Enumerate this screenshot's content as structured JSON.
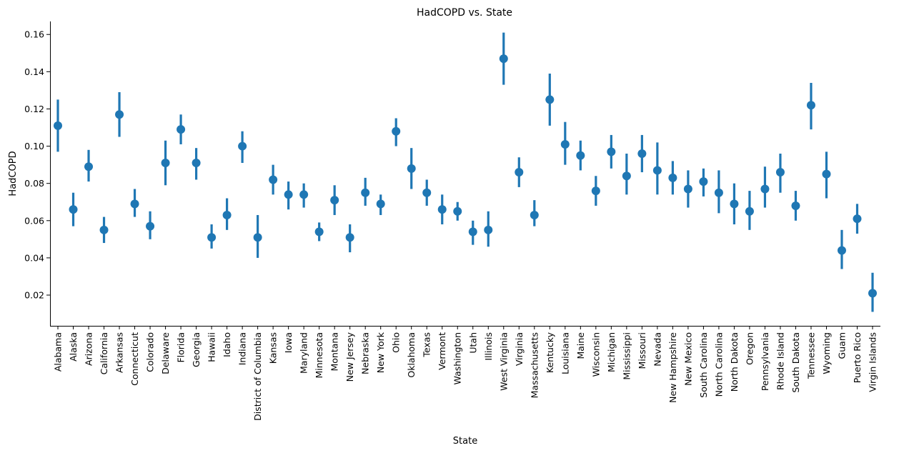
{
  "chart_data": {
    "type": "scatter",
    "style": "point-plot-with-error-bars",
    "title": "HadCOPD vs. State",
    "xlabel": "State",
    "ylabel": "HadCOPD",
    "ylim": [
      0.0035,
      0.167
    ],
    "yticks": [
      "0.02",
      "0.04",
      "0.06",
      "0.08",
      "0.10",
      "0.12",
      "0.14",
      "0.16"
    ],
    "grid": false,
    "color": "#1f77b4",
    "categories": [
      "Alabama",
      "Alaska",
      "Arizona",
      "California",
      "Arkansas",
      "Connecticut",
      "Colorado",
      "Delaware",
      "Florida",
      "Georgia",
      "Hawaii",
      "Idaho",
      "Indiana",
      "District of Columbia",
      "Kansas",
      "Iowa",
      "Maryland",
      "Minnesota",
      "Montana",
      "New Jersey",
      "Nebraska",
      "New York",
      "Ohio",
      "Oklahoma",
      "Texas",
      "Vermont",
      "Washington",
      "Utah",
      "Illinois",
      "West Virginia",
      "Virginia",
      "Massachusetts",
      "Kentucky",
      "Louisiana",
      "Maine",
      "Wisconsin",
      "Michigan",
      "Mississippi",
      "Missouri",
      "Nevada",
      "New Hampshire",
      "New Mexico",
      "South Carolina",
      "North Carolina",
      "North Dakota",
      "Oregon",
      "Pennsylvania",
      "Rhode Island",
      "South Dakota",
      "Tennessee",
      "Wyoming",
      "Guam",
      "Puerto Rico",
      "Virgin Islands"
    ],
    "values": [
      0.111,
      0.066,
      0.089,
      0.055,
      0.117,
      0.069,
      0.057,
      0.091,
      0.109,
      0.091,
      0.051,
      0.063,
      0.1,
      0.051,
      0.082,
      0.074,
      0.074,
      0.054,
      0.071,
      0.051,
      0.075,
      0.069,
      0.108,
      0.088,
      0.075,
      0.066,
      0.065,
      0.054,
      0.055,
      0.147,
      0.086,
      0.063,
      0.125,
      0.101,
      0.095,
      0.076,
      0.097,
      0.084,
      0.096,
      0.087,
      0.083,
      0.077,
      0.081,
      0.075,
      0.069,
      0.065,
      0.077,
      0.086,
      0.068,
      0.122,
      0.085,
      0.044,
      0.061,
      0.021
    ],
    "ci_low": [
      0.097,
      0.057,
      0.081,
      0.048,
      0.105,
      0.062,
      0.05,
      0.079,
      0.101,
      0.082,
      0.045,
      0.055,
      0.091,
      0.04,
      0.074,
      0.066,
      0.067,
      0.049,
      0.063,
      0.043,
      0.068,
      0.063,
      0.1,
      0.077,
      0.068,
      0.058,
      0.06,
      0.047,
      0.046,
      0.133,
      0.078,
      0.057,
      0.111,
      0.09,
      0.087,
      0.068,
      0.088,
      0.074,
      0.086,
      0.074,
      0.074,
      0.067,
      0.073,
      0.064,
      0.058,
      0.055,
      0.067,
      0.075,
      0.06,
      0.109,
      0.072,
      0.034,
      0.053,
      0.011
    ],
    "ci_high": [
      0.125,
      0.075,
      0.098,
      0.062,
      0.129,
      0.077,
      0.065,
      0.103,
      0.117,
      0.099,
      0.058,
      0.072,
      0.108,
      0.063,
      0.09,
      0.081,
      0.08,
      0.059,
      0.079,
      0.058,
      0.083,
      0.074,
      0.115,
      0.099,
      0.082,
      0.074,
      0.07,
      0.06,
      0.065,
      0.161,
      0.094,
      0.071,
      0.139,
      0.113,
      0.103,
      0.084,
      0.106,
      0.096,
      0.106,
      0.102,
      0.092,
      0.087,
      0.088,
      0.087,
      0.08,
      0.076,
      0.089,
      0.096,
      0.076,
      0.134,
      0.097,
      0.055,
      0.069,
      0.032
    ]
  }
}
